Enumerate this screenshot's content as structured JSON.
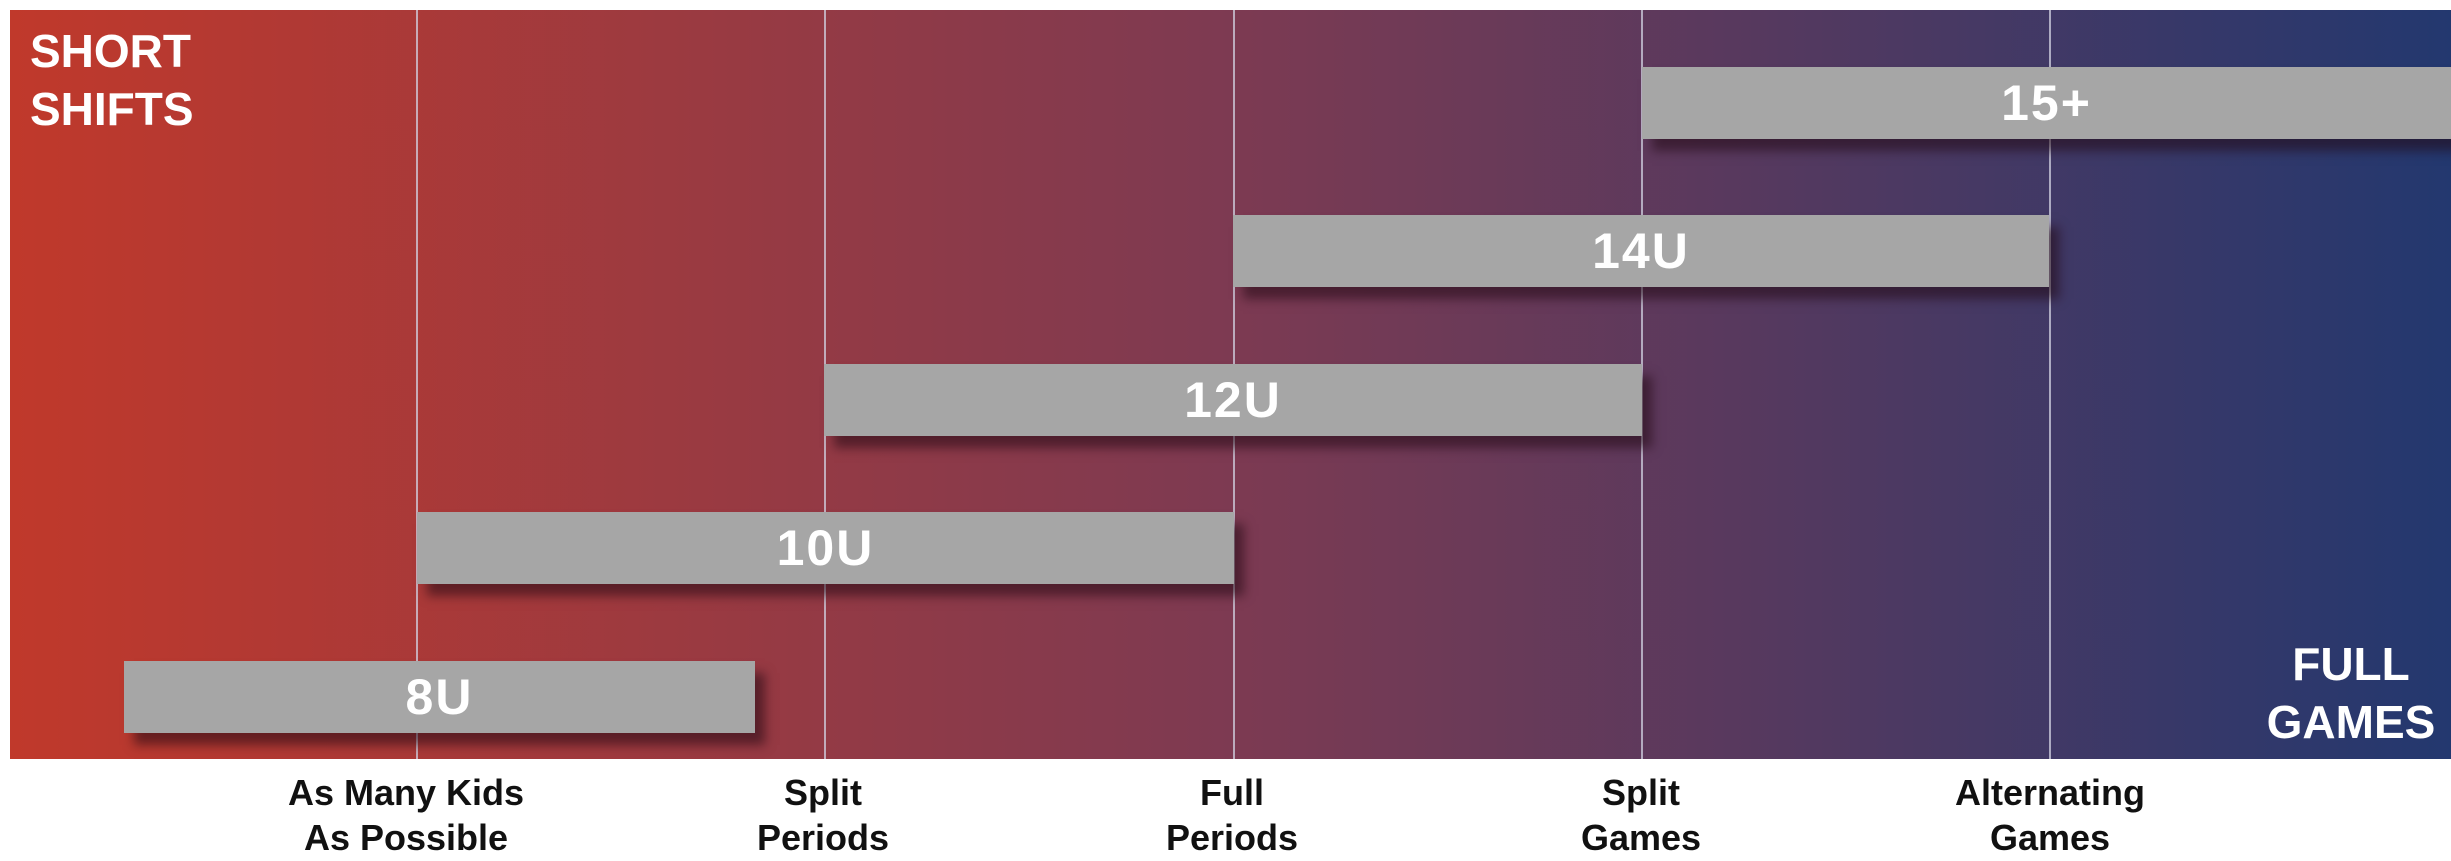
{
  "colors": {
    "gradient_start": "#c0392b",
    "gradient_mid": "#7d3a52",
    "gradient_end": "#23386f",
    "bar_fill": "#a6a6a6",
    "bar_text": "#ffffff",
    "axis_text": "#111111"
  },
  "corner_labels": {
    "top_left": {
      "line1": "SHORT",
      "line2": "SHIFTS"
    },
    "bottom_right": {
      "line1": "FULL",
      "line2": "GAMES"
    }
  },
  "axis_labels": [
    {
      "line1": "As Many Kids",
      "line2": "As Possible"
    },
    {
      "line1": "Split",
      "line2": "Periods"
    },
    {
      "line1": "Full",
      "line2": "Periods"
    },
    {
      "line1": "Split",
      "line2": "Games"
    },
    {
      "line1": "Alternating",
      "line2": "Games"
    }
  ],
  "bars": [
    {
      "label": "8U"
    },
    {
      "label": "10U"
    },
    {
      "label": "12U"
    },
    {
      "label": "14U"
    },
    {
      "label": "15+"
    }
  ]
}
